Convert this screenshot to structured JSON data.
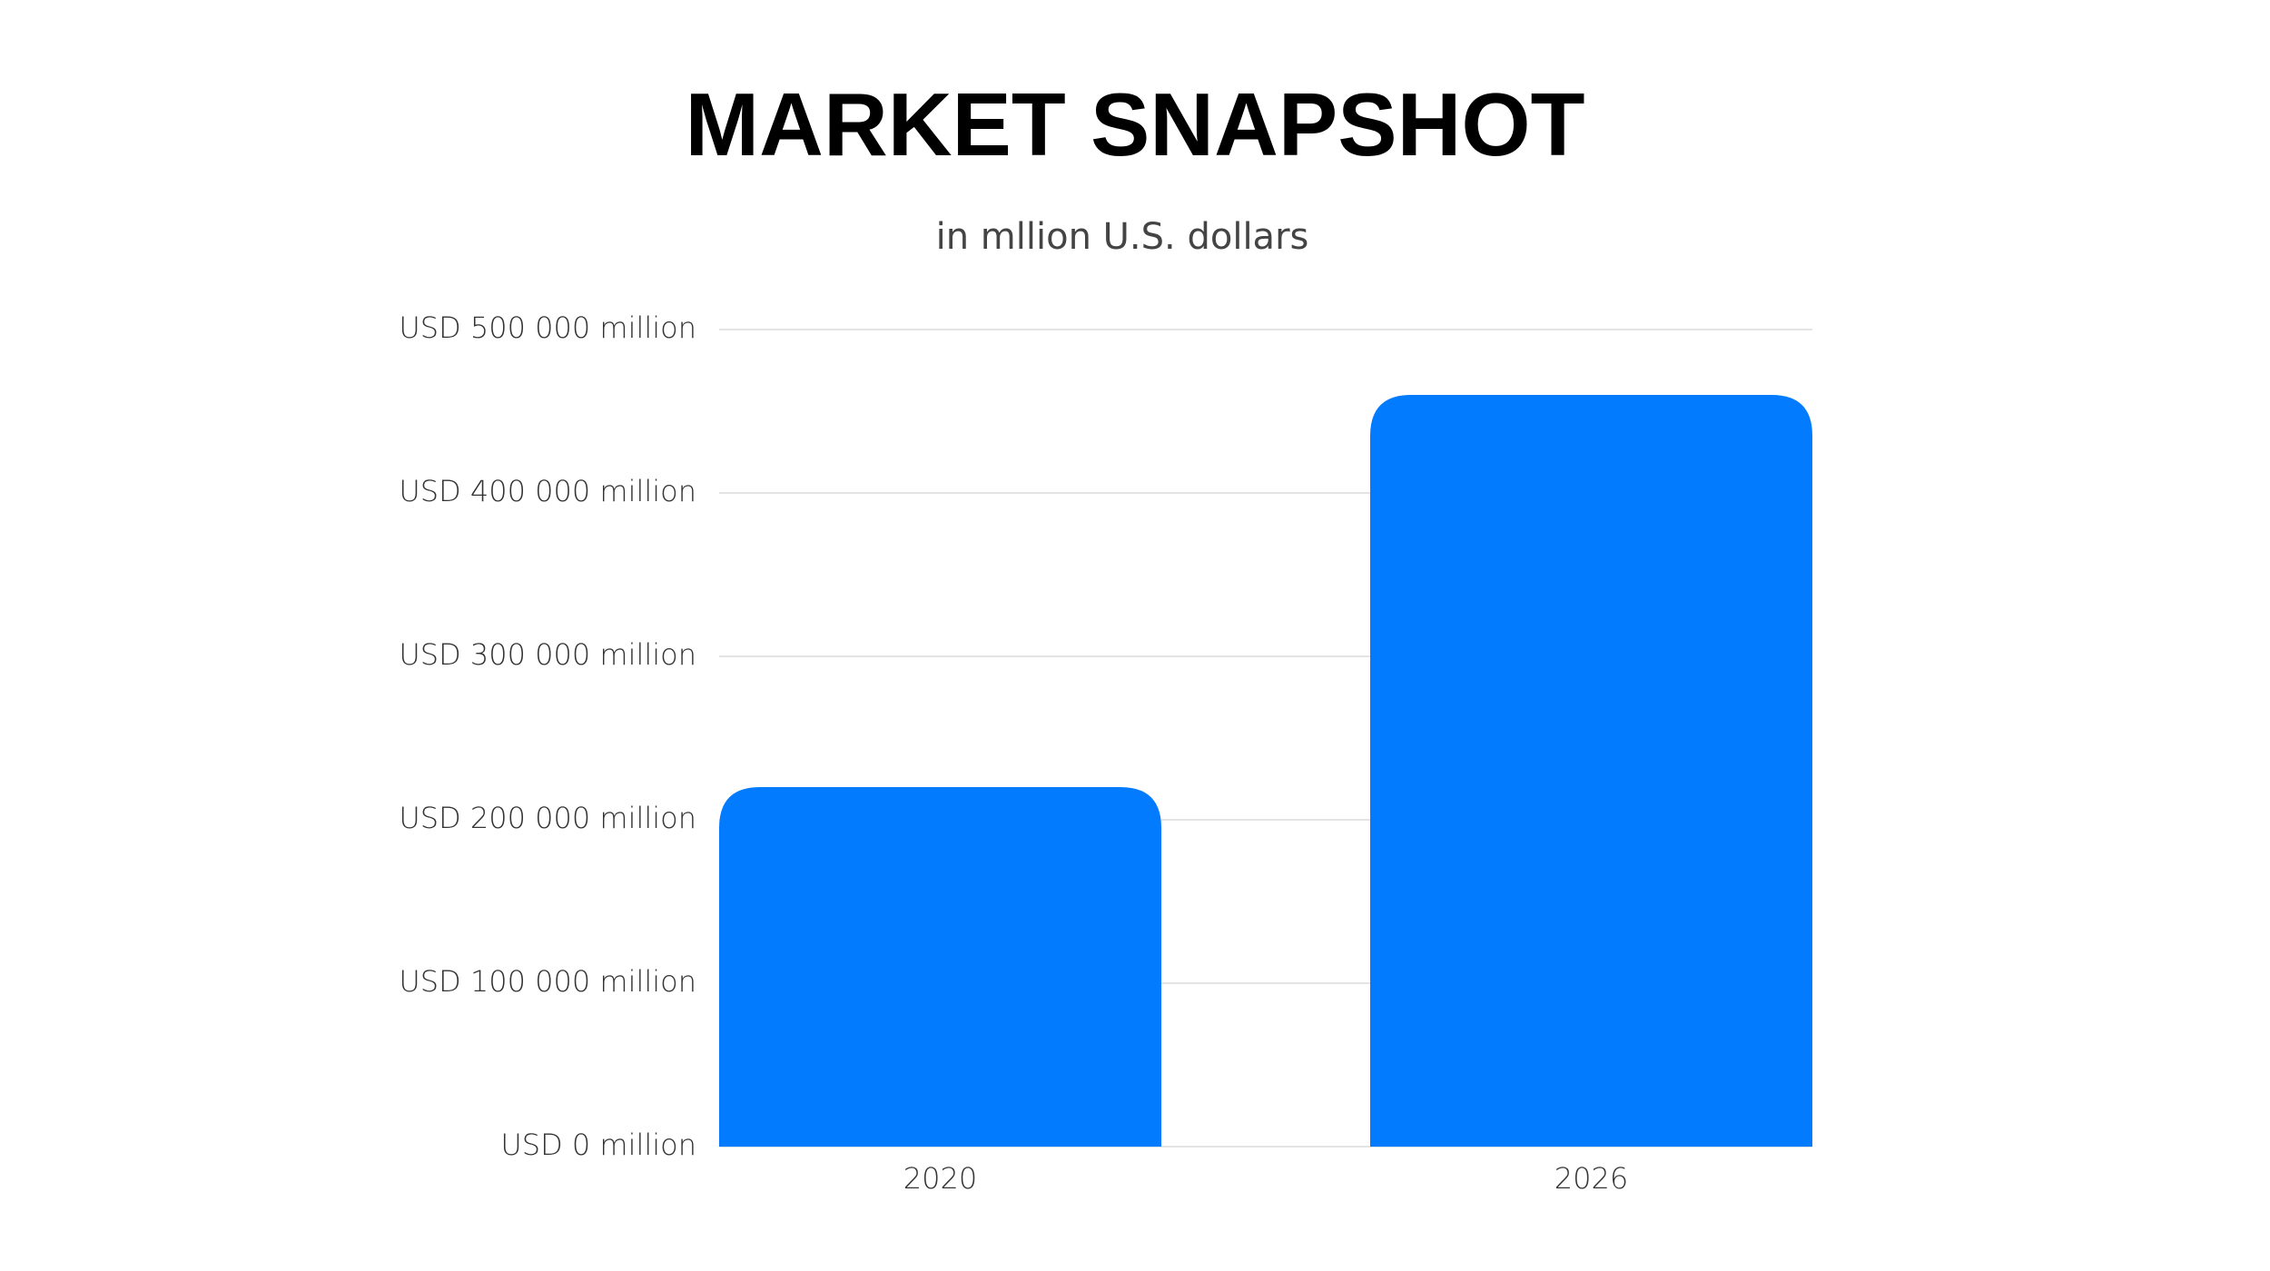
{
  "chart_data": {
    "type": "bar",
    "title": "MARKET SNAPSHOT",
    "subtitle": "in mllion U.S. dollars",
    "categories": [
      "2020",
      "2026"
    ],
    "values": [
      220000,
      460000
    ],
    "color": "#037bfe",
    "ylim": [
      0,
      500000
    ],
    "yticks": [
      {
        "value": 0,
        "label": "USD 0 million"
      },
      {
        "value": 100000,
        "label": "USD 100 000 million"
      },
      {
        "value": 200000,
        "label": "USD 200 000 million"
      },
      {
        "value": 300000,
        "label": "USD 300 000 million"
      },
      {
        "value": 400000,
        "label": "USD 400 000 million"
      },
      {
        "value": 500000,
        "label": "USD 500 000 million"
      }
    ],
    "grid": true
  }
}
